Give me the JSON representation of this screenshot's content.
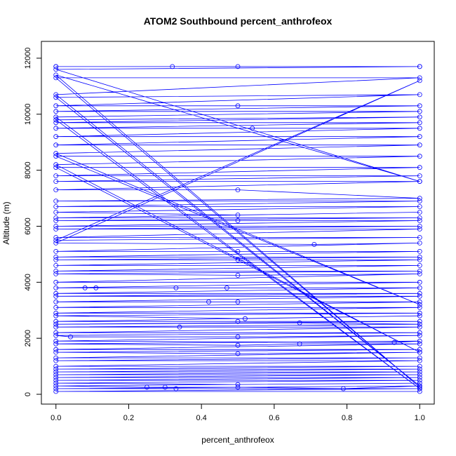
{
  "chart_data": {
    "type": "line",
    "title": "ATOM2 Southbound percent_anthrofeox",
    "xlabel": "percent_anthrofeox",
    "ylabel": "Altitude (m)",
    "xlim": [
      -0.04,
      1.04
    ],
    "ylim": [
      -350,
      12600
    ],
    "x_ticks": [
      0.0,
      0.2,
      0.4,
      0.6,
      0.8,
      1.0
    ],
    "x_tick_labels": [
      "0.0",
      "0.2",
      "0.4",
      "0.6",
      "0.8",
      "1.0"
    ],
    "y_ticks": [
      0,
      2000,
      4000,
      6000,
      8000,
      10000,
      12000
    ],
    "y_tick_labels": [
      "0",
      "2000",
      "4000",
      "6000",
      "8000",
      "10000",
      "12000"
    ],
    "grid": false,
    "series_color": "#0000ff",
    "series": [
      {
        "marker": "open-circle",
        "points": [
          [
            0.0,
            11700
          ],
          [
            1.0,
            11700
          ],
          [
            0.0,
            11700
          ],
          [
            0.32,
            11700
          ],
          [
            0.5,
            11700
          ],
          [
            1.0,
            11700
          ],
          [
            0.0,
            11600
          ],
          [
            1.0,
            7600
          ],
          [
            0.0,
            11400
          ],
          [
            1.0,
            250
          ],
          [
            0.0,
            11300
          ],
          [
            1.0,
            11300
          ],
          [
            0.0,
            10700
          ],
          [
            1.0,
            300
          ],
          [
            0.0,
            10600
          ],
          [
            1.0,
            10700
          ],
          [
            0.0,
            10300
          ],
          [
            0.5,
            10300
          ],
          [
            1.0,
            10300
          ],
          [
            0.0,
            10100
          ],
          [
            1.0,
            10100
          ],
          [
            0.0,
            9900
          ],
          [
            1.0,
            200
          ],
          [
            0.0,
            9800
          ],
          [
            1.0,
            9900
          ],
          [
            0.0,
            9700
          ],
          [
            1.0,
            9700
          ],
          [
            0.0,
            9500
          ],
          [
            0.54,
            9500
          ],
          [
            1.0,
            9500
          ],
          [
            0.0,
            9200
          ],
          [
            1.0,
            9200
          ],
          [
            0.0,
            8900
          ],
          [
            1.0,
            8900
          ],
          [
            0.0,
            8600
          ],
          [
            1.0,
            3200
          ],
          [
            0.0,
            8500
          ],
          [
            1.0,
            8500
          ],
          [
            0.0,
            8200
          ],
          [
            1.0,
            1500
          ],
          [
            0.0,
            8100
          ],
          [
            1.0,
            8100
          ],
          [
            0.0,
            7800
          ],
          [
            1.0,
            7800
          ],
          [
            0.0,
            7600
          ],
          [
            1.0,
            7600
          ],
          [
            0.0,
            7300
          ],
          [
            0.5,
            7300
          ],
          [
            1.0,
            7000
          ],
          [
            0.0,
            6900
          ],
          [
            1.0,
            6900
          ],
          [
            0.0,
            6700
          ],
          [
            1.0,
            6700
          ],
          [
            0.0,
            6500
          ],
          [
            0.5,
            6400
          ],
          [
            1.0,
            6500
          ],
          [
            0.0,
            6300
          ],
          [
            1.0,
            6300
          ],
          [
            0.0,
            6200
          ],
          [
            0.5,
            6200
          ],
          [
            1.0,
            6200
          ],
          [
            0.0,
            6000
          ],
          [
            1.0,
            6000
          ],
          [
            0.0,
            5900
          ],
          [
            1.0,
            5900
          ],
          [
            0.0,
            5600
          ],
          [
            1.0,
            5600
          ],
          [
            0.0,
            5500
          ],
          [
            1.0,
            11200
          ],
          [
            0.0,
            5400
          ],
          [
            0.71,
            5350
          ],
          [
            1.0,
            5400
          ],
          [
            0.0,
            5100
          ],
          [
            0.5,
            5100
          ],
          [
            1.0,
            5100
          ],
          [
            0.0,
            4900
          ],
          [
            1.0,
            4900
          ],
          [
            0.0,
            4800
          ],
          [
            0.5,
            4800
          ],
          [
            1.0,
            4800
          ],
          [
            0.0,
            4600
          ],
          [
            1.0,
            4600
          ],
          [
            0.0,
            4400
          ],
          [
            1.0,
            4400
          ],
          [
            0.0,
            4300
          ],
          [
            0.5,
            4250
          ],
          [
            1.0,
            4300
          ],
          [
            0.0,
            4000
          ],
          [
            1.0,
            4000
          ],
          [
            0.0,
            3800
          ],
          [
            0.08,
            3800
          ],
          [
            0.11,
            3800
          ],
          [
            0.33,
            3800
          ],
          [
            0.47,
            3800
          ],
          [
            1.0,
            3800
          ],
          [
            0.0,
            3600
          ],
          [
            1.0,
            3600
          ],
          [
            0.0,
            3500
          ],
          [
            1.0,
            3500
          ],
          [
            0.0,
            3300
          ],
          [
            0.42,
            3300
          ],
          [
            0.5,
            3300
          ],
          [
            1.0,
            3300
          ],
          [
            0.0,
            3100
          ],
          [
            1.0,
            3100
          ],
          [
            0.0,
            2900
          ],
          [
            1.0,
            2900
          ],
          [
            0.0,
            2800
          ],
          [
            0.52,
            2700
          ],
          [
            1.0,
            2800
          ],
          [
            0.0,
            2600
          ],
          [
            0.5,
            2600
          ],
          [
            1.0,
            2600
          ],
          [
            0.0,
            2500
          ],
          [
            0.67,
            2550
          ],
          [
            1.0,
            2500
          ],
          [
            0.0,
            2400
          ],
          [
            0.34,
            2400
          ],
          [
            1.0,
            2400
          ],
          [
            0.0,
            2200
          ],
          [
            1.0,
            2200
          ],
          [
            0.0,
            2100
          ],
          [
            0.04,
            2050
          ],
          [
            0.5,
            2050
          ],
          [
            1.0,
            2100
          ],
          [
            0.0,
            1900
          ],
          [
            0.93,
            1850
          ],
          [
            1.0,
            1900
          ],
          [
            0.0,
            1800
          ],
          [
            0.5,
            1750
          ],
          [
            0.67,
            1800
          ],
          [
            1.0,
            1800
          ],
          [
            0.0,
            1600
          ],
          [
            1.0,
            1600
          ],
          [
            0.0,
            1500
          ],
          [
            0.5,
            1450
          ],
          [
            1.0,
            1500
          ],
          [
            0.0,
            1300
          ],
          [
            1.0,
            1300
          ],
          [
            0.0,
            1200
          ],
          [
            1.0,
            1200
          ],
          [
            0.0,
            1000
          ],
          [
            1.0,
            1000
          ],
          [
            0.0,
            900
          ],
          [
            1.0,
            900
          ],
          [
            0.0,
            800
          ],
          [
            1.0,
            800
          ],
          [
            0.0,
            700
          ],
          [
            1.0,
            700
          ],
          [
            0.0,
            600
          ],
          [
            1.0,
            600
          ],
          [
            0.0,
            500
          ],
          [
            1.0,
            500
          ],
          [
            0.0,
            400
          ],
          [
            0.5,
            350
          ],
          [
            1.0,
            400
          ],
          [
            0.0,
            300
          ],
          [
            0.25,
            250
          ],
          [
            0.3,
            250
          ],
          [
            0.5,
            250
          ],
          [
            0.79,
            200
          ],
          [
            1.0,
            300
          ],
          [
            0.0,
            200
          ],
          [
            0.33,
            200
          ],
          [
            1.0,
            200
          ],
          [
            0.0,
            100
          ],
          [
            1.0,
            100
          ]
        ]
      }
    ]
  }
}
